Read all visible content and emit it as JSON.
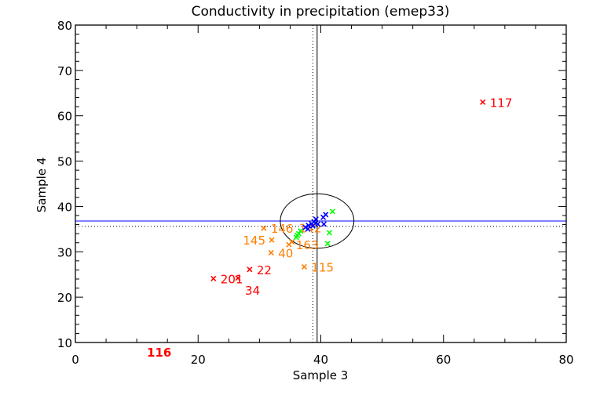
{
  "chart_data": {
    "type": "scatter",
    "title": "Conductivity in precipitation (emep33)",
    "xlabel": "Sample 3",
    "ylabel": "Sample 4",
    "xlim": [
      0,
      80
    ],
    "ylim": [
      10,
      80
    ],
    "xticks": [
      0,
      20,
      40,
      60,
      80
    ],
    "yticks": [
      10,
      20,
      30,
      40,
      50,
      60,
      70,
      80
    ],
    "grid": false,
    "colors": {
      "red": "#ff0000",
      "orange": "#ff7f00",
      "green": "#00ff00",
      "blue": "#0000ff",
      "ref_line": "#0000ff",
      "ellipse": "#000000"
    },
    "reference": {
      "solid_x": 39.4,
      "solid_y": 36.8,
      "dotted_x": 38.7,
      "dotted_y": 35.6,
      "ellipse_center": [
        39.4,
        36.8
      ],
      "ellipse_radius": [
        6.0,
        6.0
      ]
    },
    "points": [
      {
        "x": 66.4,
        "y": 63.0,
        "color": "red",
        "label": "117"
      },
      {
        "x": 22.5,
        "y": 24.1,
        "color": "red",
        "label": "201"
      },
      {
        "x": 26.5,
        "y": 24.2,
        "color": "red",
        "label": "34"
      },
      {
        "x": 28.4,
        "y": 26.1,
        "color": "red",
        "label": "22"
      },
      {
        "x": 10.5,
        "y": 8.0,
        "color": "red",
        "label": "116"
      },
      {
        "x": 30.7,
        "y": 35.2,
        "color": "orange",
        "label": "146"
      },
      {
        "x": 32.0,
        "y": 32.6,
        "color": "orange",
        "label": "145"
      },
      {
        "x": 31.9,
        "y": 29.8,
        "color": "orange",
        "label": "40"
      },
      {
        "x": 37.3,
        "y": 26.7,
        "color": "orange",
        "label": "115"
      },
      {
        "x": 34.8,
        "y": 31.6,
        "color": "orange",
        "label": "163"
      },
      {
        "x": 35.3,
        "y": 32.2,
        "color": "orange",
        "label": "142"
      },
      {
        "x": 36.0,
        "y": 33.2,
        "color": "green",
        "label": ""
      },
      {
        "x": 36.4,
        "y": 34.0,
        "color": "green",
        "label": ""
      },
      {
        "x": 36.7,
        "y": 34.6,
        "color": "green",
        "label": ""
      },
      {
        "x": 36.2,
        "y": 33.6,
        "color": "green",
        "label": ""
      },
      {
        "x": 41.9,
        "y": 38.9,
        "color": "green",
        "label": ""
      },
      {
        "x": 41.4,
        "y": 34.2,
        "color": "green",
        "label": ""
      },
      {
        "x": 41.1,
        "y": 31.8,
        "color": "green",
        "label": ""
      },
      {
        "x": 37.5,
        "y": 35.4,
        "color": "blue",
        "label": ""
      },
      {
        "x": 38.0,
        "y": 35.8,
        "color": "blue",
        "label": ""
      },
      {
        "x": 38.5,
        "y": 36.2,
        "color": "blue",
        "label": ""
      },
      {
        "x": 38.9,
        "y": 36.6,
        "color": "blue",
        "label": ""
      },
      {
        "x": 39.2,
        "y": 37.2,
        "color": "blue",
        "label": ""
      },
      {
        "x": 38.7,
        "y": 35.7,
        "color": "blue",
        "label": ""
      },
      {
        "x": 39.5,
        "y": 36.1,
        "color": "blue",
        "label": ""
      },
      {
        "x": 40.4,
        "y": 37.6,
        "color": "blue",
        "label": ""
      },
      {
        "x": 40.8,
        "y": 38.2,
        "color": "blue",
        "label": ""
      },
      {
        "x": 40.5,
        "y": 36.1,
        "color": "blue",
        "label": ""
      },
      {
        "x": 37.9,
        "y": 35.0,
        "color": "blue",
        "label": ""
      }
    ]
  }
}
